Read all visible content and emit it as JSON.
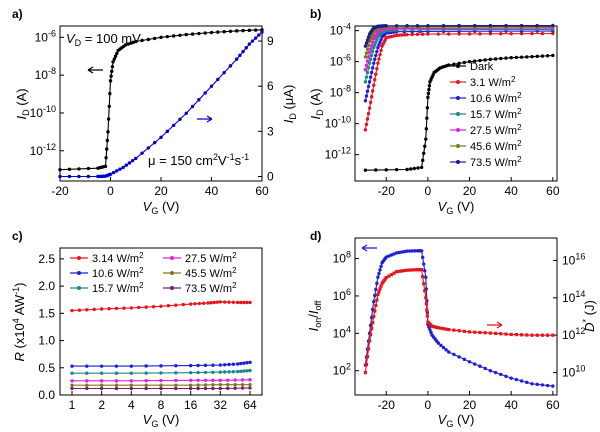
{
  "chart_data": [
    {
      "panel": "a)",
      "type": "line",
      "annotations": {
        "vd": "V_D = 100 mV",
        "mobility": "μ = 150 cm²V⁻¹s⁻¹"
      },
      "xlabel": "VG (V)",
      "ylabel_left": "ID (A)",
      "ylabel_right": "ID (μA)",
      "xlim": [
        -20,
        60
      ],
      "ylim_left_log": [
        -13.6,
        -5.4
      ],
      "ylim_right": [
        -0.3,
        10
      ],
      "xticks": [
        "-20",
        "0",
        "20",
        "40",
        "60"
      ],
      "yticks_left": [
        "10-12",
        "10-10",
        "10-8",
        "10-6"
      ],
      "yticks_right": [
        "0",
        "3",
        "6",
        "9"
      ],
      "series": [
        {
          "axis": "left",
          "scale": "log",
          "color": "#000000",
          "x": [
            -20,
            -5,
            -2,
            -1,
            0,
            1,
            3,
            6,
            10,
            20,
            30,
            40,
            50,
            60
          ],
          "y": [
            1e-13,
            1.2e-13,
            1.5e-13,
            1e-11,
            5e-09,
            5e-08,
            2e-07,
            4e-07,
            6e-07,
            1e-06,
            1.4e-06,
            1.8e-06,
            2.2e-06,
            2.5e-06
          ]
        },
        {
          "axis": "right",
          "scale": "linear",
          "color": "#0000cc",
          "x": [
            -20,
            -5,
            -2,
            0,
            5,
            10,
            20,
            30,
            40,
            50,
            55,
            60
          ],
          "y": [
            0,
            0,
            0.02,
            0.15,
            0.6,
            1.2,
            2.6,
            4.2,
            6.0,
            7.8,
            8.8,
            9.6
          ]
        }
      ]
    },
    {
      "panel": "b)",
      "type": "line",
      "xlabel": "VG (V)",
      "ylabel": "ID (A)",
      "xlim": [
        -35,
        62
      ],
      "ylim_log": [
        -13.7,
        -3.7
      ],
      "xticks": [
        "-20",
        "0",
        "20",
        "40",
        "60"
      ],
      "yticks": [
        "10-12",
        "10-10",
        "10-8",
        "10-6",
        "10-4"
      ],
      "series": [
        {
          "name": "Dark",
          "color": "#000000",
          "x": [
            -30,
            -10,
            -3,
            -1,
            0,
            1,
            3,
            6,
            10,
            20,
            30,
            40,
            50,
            60
          ],
          "y": [
            1e-13,
            1.1e-13,
            1.5e-13,
            1e-11,
            5e-09,
            5e-08,
            2e-07,
            4e-07,
            6e-07,
            1e-06,
            1.4e-06,
            1.8e-06,
            2.1e-06,
            2.5e-06
          ]
        },
        {
          "name": "3.1 W/m²",
          "color": "#e8141c",
          "x": [
            -30,
            -28,
            -26,
            -24,
            -22,
            -20,
            -15,
            -10,
            0,
            20,
            40,
            60
          ],
          "y": [
            4e-11,
            1e-09,
            3e-08,
            8e-07,
            1e-05,
            3.5e-05,
            5e-05,
            5.5e-05,
            6e-05,
            6.2e-05,
            6.4e-05,
            6.5e-05
          ]
        },
        {
          "name": "10.6 W/m²",
          "color": "#1f1fd6",
          "x": [
            -30,
            -28,
            -26,
            -24,
            -22,
            -20,
            -15,
            0,
            30,
            60
          ],
          "y": [
            3e-09,
            5e-08,
            8e-07,
            8e-06,
            4e-05,
            7e-05,
            8.5e-05,
            9e-05,
            9.2e-05,
            9.4e-05
          ]
        },
        {
          "name": "15.7 W/m²",
          "color": "#1a8a80",
          "x": [
            -30,
            -28,
            -26,
            -24,
            -22,
            -20,
            -15,
            0,
            30,
            60
          ],
          "y": [
            5e-08,
            8e-07,
            8e-06,
            4e-05,
            8e-05,
            0.0001,
            0.00011,
            0.000115,
            0.00012,
            0.00012
          ]
        },
        {
          "name": "27.5 W/m²",
          "color": "#e020e0",
          "x": [
            -30,
            -28,
            -26,
            -24,
            -22,
            -20,
            -15,
            0,
            30,
            60
          ],
          "y": [
            3e-07,
            4e-06,
            3e-05,
            8e-05,
            0.00012,
            0.00013,
            0.000135,
            0.00014,
            0.000142,
            0.000145
          ]
        },
        {
          "name": "45.6 W/m²",
          "color": "#7a7a18",
          "x": [
            -30,
            -28,
            -26,
            -24,
            -22,
            -20,
            0,
            30,
            60
          ],
          "y": [
            2e-06,
            2e-05,
            8e-05,
            0.00014,
            0.00016,
            0.000165,
            0.00017,
            0.000172,
            0.000175
          ]
        },
        {
          "name": "73.5 W/m²",
          "color": "#1c1c8c",
          "x": [
            -30,
            -28,
            -26,
            -24,
            -22,
            -20,
            0,
            30,
            60
          ],
          "y": [
            1e-05,
            6e-05,
            0.00015,
            0.00019,
            0.0002,
            0.000205,
            0.00021,
            0.000212,
            0.000215
          ]
        }
      ]
    },
    {
      "panel": "c)",
      "type": "line",
      "xlabel": "VG (V)",
      "ylabel": "R (x10⁴ AW⁻¹)",
      "xscale": "log2",
      "xlim": [
        1,
        64
      ],
      "ylim": [
        0,
        2.7
      ],
      "xticks": [
        "1",
        "2",
        "4",
        "8",
        "16",
        "32",
        "64"
      ],
      "yticks": [
        "0.0",
        "0.5",
        "1.0",
        "1.5",
        "2.0",
        "2.5"
      ],
      "series": [
        {
          "name": "3.14 W/m²",
          "color": "#e8141c",
          "x": [
            1,
            2,
            4,
            8,
            16,
            24,
            32,
            48,
            64
          ],
          "y": [
            1.55,
            1.58,
            1.6,
            1.63,
            1.67,
            1.69,
            1.71,
            1.7,
            1.7
          ]
        },
        {
          "name": "10.6 W/m²",
          "color": "#1f1fd6",
          "x": [
            1,
            4,
            16,
            32,
            48,
            64
          ],
          "y": [
            0.53,
            0.53,
            0.54,
            0.55,
            0.57,
            0.6
          ]
        },
        {
          "name": "15.7 W/m²",
          "color": "#1a8a80",
          "x": [
            1,
            4,
            16,
            32,
            48,
            64
          ],
          "y": [
            0.4,
            0.4,
            0.41,
            0.42,
            0.43,
            0.45
          ]
        },
        {
          "name": "27.5 W/m²",
          "color": "#e020e0",
          "x": [
            1,
            4,
            16,
            32,
            64
          ],
          "y": [
            0.26,
            0.26,
            0.27,
            0.27,
            0.28
          ]
        },
        {
          "name": "45.5 W/m²",
          "color": "#7a7a18",
          "x": [
            1,
            4,
            16,
            32,
            64
          ],
          "y": [
            0.18,
            0.18,
            0.18,
            0.19,
            0.19
          ]
        },
        {
          "name": "73.5 W/m²",
          "color": "#7a1f6b",
          "x": [
            1,
            4,
            16,
            32,
            64
          ],
          "y": [
            0.12,
            0.12,
            0.12,
            0.12,
            0.13
          ]
        }
      ]
    },
    {
      "panel": "d)",
      "type": "line",
      "xlabel": "VG (V)",
      "ylabel_left": "Ion/Ioff",
      "ylabel_right": "D* (J)",
      "xlim": [
        -35,
        62
      ],
      "ylim_left_log": [
        0.7,
        9.1
      ],
      "ylim_right_log": [
        8.8,
        17.2
      ],
      "xticks": [
        "-20",
        "0",
        "20",
        "40",
        "60"
      ],
      "yticks_left": [
        "10²",
        "10⁴",
        "10⁶",
        "10⁸"
      ],
      "yticks_right": [
        "10¹⁰",
        "10¹²",
        "10¹⁴",
        "10¹⁶"
      ],
      "series": [
        {
          "axis": "left",
          "scale": "log",
          "color": "#1f1fd6",
          "x": [
            -30,
            -28,
            -26,
            -24,
            -22,
            -20,
            -15,
            -10,
            -5,
            -3,
            -1,
            0,
            2,
            5,
            10,
            20,
            30,
            40,
            50,
            60
          ],
          "y": [
            200.0,
            10000.0,
            500000.0,
            10000000.0,
            60000000.0,
            120000000.0,
            200000000.0,
            250000000.0,
            260000000.0,
            260000000.0,
            10000000.0,
            30000.0,
            8000.0,
            3000.0,
            1000.0,
            300.0,
            100.0,
            40.0,
            20.0,
            15.0
          ]
        },
        {
          "axis": "right",
          "scale": "log",
          "color": "#e8141c",
          "x": [
            -30,
            -28,
            -26,
            -24,
            -22,
            -20,
            -15,
            -10,
            -5,
            -3,
            -1,
            0,
            2,
            5,
            10,
            20,
            30,
            40,
            50,
            60
          ],
          "y": [
            10000000000.0,
            500000000000.0,
            10000000000000.0,
            150000000000000.0,
            600000000000000.0,
            1200000000000000.0,
            2500000000000000.0,
            3000000000000000.0,
            3200000000000000.0,
            3200000000000000.0,
            100000000000000.0,
            5000000000000.0,
            3000000000000.0,
            2500000000000.0,
            2000000000000.0,
            1500000000000.0,
            1300000000000.0,
            1100000000000.0,
            1000000000000.0,
            1000000000000.0
          ]
        }
      ]
    }
  ]
}
